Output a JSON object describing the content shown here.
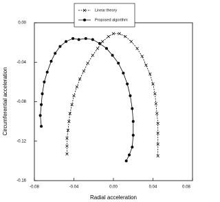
{
  "chart_data": {
    "type": "line",
    "xlabel": "Radial acceleration",
    "ylabel": "Circumferential acceleration",
    "xlim": [
      -0.08,
      0.08
    ],
    "xticks": [
      -0.08,
      -0.04,
      {
        "value": 0,
        "label": "0.00"
      },
      0.04,
      0.08
    ],
    "ylim": [
      -0.16,
      0
    ],
    "yticks": [
      {
        "value": 0,
        "label": "0.00"
      },
      -0.04,
      -0.08,
      -0.12,
      -0.16
    ],
    "legend": "top",
    "series": [
      {
        "name": "Linear theory",
        "color": "#000000",
        "marker": "x",
        "dash": true,
        "x": [
          -0.047,
          -0.047,
          -0.047,
          -0.046,
          -0.045,
          -0.044,
          -0.042,
          -0.04,
          -0.037,
          -0.034,
          -0.03,
          -0.026,
          -0.021,
          -0.016,
          -0.011,
          -0.005,
          0.0,
          0.006,
          0.012,
          0.018,
          0.024,
          0.029,
          0.033,
          0.037,
          0.04,
          0.042,
          0.043,
          0.044,
          0.045,
          0.045,
          0.045,
          0.045
        ],
        "values": [
          -0.133,
          -0.125,
          -0.117,
          -0.109,
          -0.1,
          -0.092,
          -0.083,
          -0.074,
          -0.065,
          -0.057,
          -0.049,
          -0.041,
          -0.033,
          -0.026,
          -0.019,
          -0.014,
          -0.011,
          -0.011,
          -0.014,
          -0.019,
          -0.026,
          -0.034,
          -0.043,
          -0.052,
          -0.062,
          -0.072,
          -0.082,
          -0.092,
          -0.102,
          -0.112,
          -0.123,
          -0.135
        ]
      },
      {
        "name": "Proposed algorithm",
        "color": "#000000",
        "marker": "circle",
        "dash": false,
        "x": [
          -0.073,
          -0.074,
          -0.073,
          -0.072,
          -0.07,
          -0.067,
          -0.063,
          -0.059,
          -0.054,
          -0.048,
          -0.041,
          -0.035,
          -0.028,
          -0.021,
          -0.014,
          -0.007,
          -0.001,
          0.005,
          0.01,
          0.014,
          0.017,
          0.019,
          0.02,
          0.02,
          0.019,
          0.016,
          0.013
        ],
        "values": [
          -0.105,
          -0.094,
          -0.083,
          -0.072,
          -0.06,
          -0.05,
          -0.039,
          -0.031,
          -0.024,
          -0.019,
          -0.016,
          -0.017,
          -0.016,
          -0.017,
          -0.021,
          -0.026,
          -0.033,
          -0.041,
          -0.051,
          -0.062,
          -0.074,
          -0.087,
          -0.1,
          -0.114,
          -0.126,
          -0.134,
          -0.14
        ]
      }
    ]
  }
}
